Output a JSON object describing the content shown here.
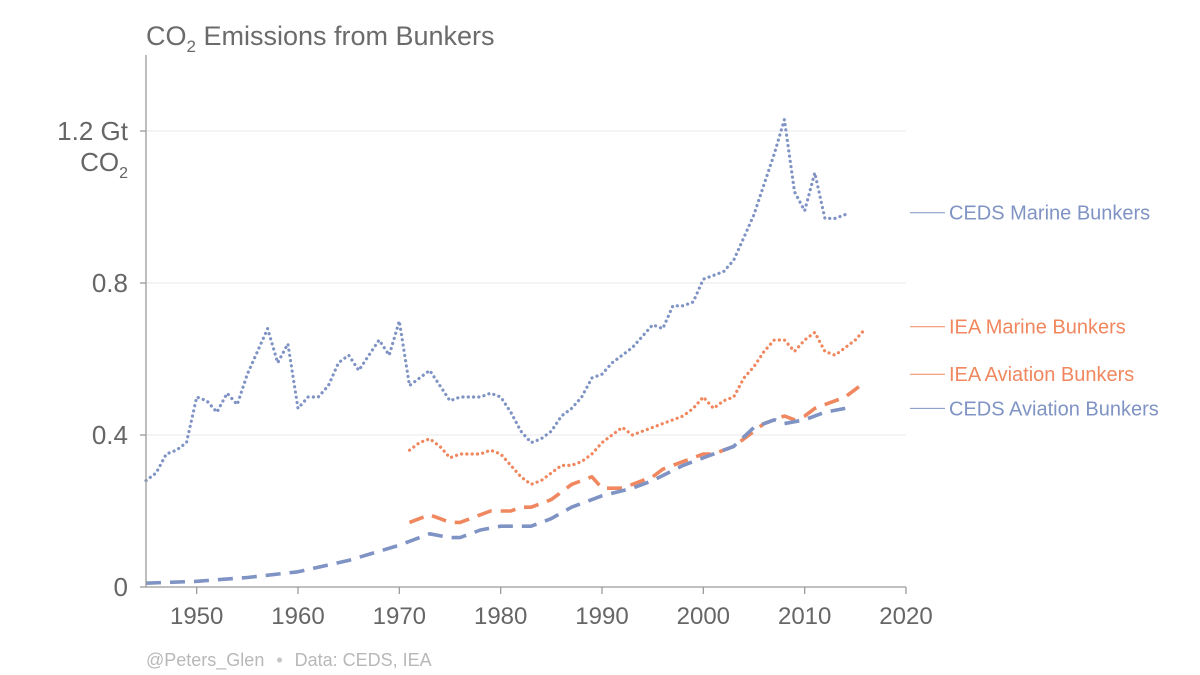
{
  "chart_data": {
    "type": "line",
    "title": {
      "prefix": "CO",
      "subscript": "2",
      "suffix": " Emissions from Bunkers"
    },
    "ylabel": {
      "line1": "1.2 Gt",
      "line2_prefix": "CO",
      "line2_sub": "2"
    },
    "xlim": [
      1945,
      2020
    ],
    "ylim": [
      0,
      1.4
    ],
    "x_ticks": [
      1950,
      1960,
      1970,
      1980,
      1990,
      2000,
      2010,
      2020
    ],
    "y_ticks": [
      {
        "value": 0,
        "label": "0"
      },
      {
        "value": 0.4,
        "label": "0.4"
      },
      {
        "value": 0.8,
        "label": "0.8"
      },
      {
        "value": 1.2,
        "label": "1.2 Gt"
      }
    ],
    "grid": true,
    "series": [
      {
        "name": "CEDS Marine Bunkers",
        "color": "#7f93c4",
        "style": "dotted",
        "x": [
          1945,
          1946,
          1947,
          1948,
          1949,
          1950,
          1951,
          1952,
          1953,
          1954,
          1955,
          1956,
          1957,
          1958,
          1959,
          1960,
          1961,
          1962,
          1963,
          1964,
          1965,
          1966,
          1967,
          1968,
          1969,
          1970,
          1971,
          1972,
          1973,
          1974,
          1975,
          1976,
          1977,
          1978,
          1979,
          1980,
          1981,
          1982,
          1983,
          1984,
          1985,
          1986,
          1987,
          1988,
          1989,
          1990,
          1991,
          1992,
          1993,
          1994,
          1995,
          1996,
          1997,
          1998,
          1999,
          2000,
          2001,
          2002,
          2003,
          2004,
          2005,
          2006,
          2007,
          2008,
          2009,
          2010,
          2011,
          2012,
          2013,
          2014
        ],
        "values": [
          0.28,
          0.3,
          0.35,
          0.36,
          0.38,
          0.5,
          0.49,
          0.46,
          0.51,
          0.48,
          0.56,
          0.62,
          0.68,
          0.59,
          0.64,
          0.47,
          0.5,
          0.5,
          0.53,
          0.59,
          0.61,
          0.57,
          0.61,
          0.65,
          0.61,
          0.7,
          0.53,
          0.55,
          0.57,
          0.53,
          0.49,
          0.5,
          0.5,
          0.5,
          0.51,
          0.5,
          0.46,
          0.41,
          0.38,
          0.39,
          0.41,
          0.45,
          0.47,
          0.5,
          0.55,
          0.56,
          0.59,
          0.61,
          0.63,
          0.66,
          0.69,
          0.68,
          0.74,
          0.74,
          0.75,
          0.81,
          0.82,
          0.83,
          0.86,
          0.92,
          0.98,
          1.06,
          1.14,
          1.23,
          1.04,
          0.99,
          1.09,
          0.97,
          0.97,
          0.98
        ]
      },
      {
        "name": "IEA Marine Bunkers",
        "color": "#f0875f",
        "style": "dotted",
        "x": [
          1971,
          1972,
          1973,
          1974,
          1975,
          1976,
          1977,
          1978,
          1979,
          1980,
          1981,
          1982,
          1983,
          1984,
          1985,
          1986,
          1987,
          1988,
          1989,
          1990,
          1991,
          1992,
          1993,
          1994,
          1995,
          1996,
          1997,
          1998,
          1999,
          2000,
          2001,
          2002,
          2003,
          2004,
          2005,
          2006,
          2007,
          2008,
          2009,
          2010,
          2011,
          2012,
          2013,
          2014,
          2015,
          2016
        ],
        "values": [
          0.36,
          0.38,
          0.39,
          0.37,
          0.34,
          0.35,
          0.35,
          0.35,
          0.36,
          0.35,
          0.32,
          0.29,
          0.27,
          0.28,
          0.3,
          0.32,
          0.32,
          0.33,
          0.35,
          0.38,
          0.4,
          0.42,
          0.4,
          0.41,
          0.42,
          0.43,
          0.44,
          0.45,
          0.47,
          0.5,
          0.47,
          0.49,
          0.5,
          0.55,
          0.58,
          0.62,
          0.65,
          0.65,
          0.62,
          0.65,
          0.67,
          0.62,
          0.61,
          0.63,
          0.65,
          0.68
        ]
      },
      {
        "name": "IEA Aviation Bunkers",
        "color": "#f0875f",
        "style": "dashed",
        "x": [
          1971,
          1972,
          1973,
          1974,
          1975,
          1976,
          1977,
          1978,
          1979,
          1980,
          1981,
          1982,
          1983,
          1984,
          1985,
          1986,
          1987,
          1988,
          1989,
          1990,
          1991,
          1992,
          1993,
          1994,
          1995,
          1996,
          1997,
          1998,
          1999,
          2000,
          2001,
          2002,
          2003,
          2004,
          2005,
          2006,
          2007,
          2008,
          2009,
          2010,
          2011,
          2012,
          2013,
          2014,
          2015,
          2016
        ],
        "values": [
          0.17,
          0.18,
          0.19,
          0.18,
          0.17,
          0.17,
          0.18,
          0.19,
          0.2,
          0.2,
          0.2,
          0.21,
          0.21,
          0.22,
          0.23,
          0.25,
          0.27,
          0.28,
          0.29,
          0.26,
          0.26,
          0.26,
          0.27,
          0.28,
          0.29,
          0.31,
          0.32,
          0.33,
          0.34,
          0.35,
          0.35,
          0.36,
          0.37,
          0.39,
          0.41,
          0.43,
          0.44,
          0.45,
          0.44,
          0.45,
          0.47,
          0.48,
          0.49,
          0.5,
          0.52,
          0.54
        ]
      },
      {
        "name": "CEDS Aviation Bunkers",
        "color": "#7f93c4",
        "style": "dashed",
        "x": [
          1945,
          1950,
          1955,
          1960,
          1965,
          1970,
          1973,
          1975,
          1976,
          1978,
          1980,
          1983,
          1985,
          1987,
          1990,
          1993,
          1995,
          1998,
          2000,
          2003,
          2005,
          2007,
          2008,
          2010,
          2012,
          2014
        ],
        "values": [
          0.01,
          0.015,
          0.025,
          0.04,
          0.07,
          0.11,
          0.14,
          0.13,
          0.13,
          0.15,
          0.16,
          0.16,
          0.18,
          0.21,
          0.24,
          0.26,
          0.28,
          0.32,
          0.34,
          0.37,
          0.42,
          0.44,
          0.43,
          0.44,
          0.46,
          0.47
        ]
      }
    ],
    "legend": [
      {
        "name": "CEDS Marine Bunkers",
        "color": "#7f93c4",
        "anchor_value": 0.985
      },
      {
        "name": "IEA Marine Bunkers",
        "color": "#f0875f",
        "anchor_value": 0.685
      },
      {
        "name": "IEA Aviation Bunkers",
        "color": "#f0875f",
        "anchor_value": 0.56
      },
      {
        "name": "CEDS Aviation Bunkers",
        "color": "#7f93c4",
        "anchor_value": 0.47
      }
    ]
  },
  "footer": {
    "author": "@Peters_Glen",
    "separator": "•",
    "source": "Data: CEDS, IEA"
  }
}
